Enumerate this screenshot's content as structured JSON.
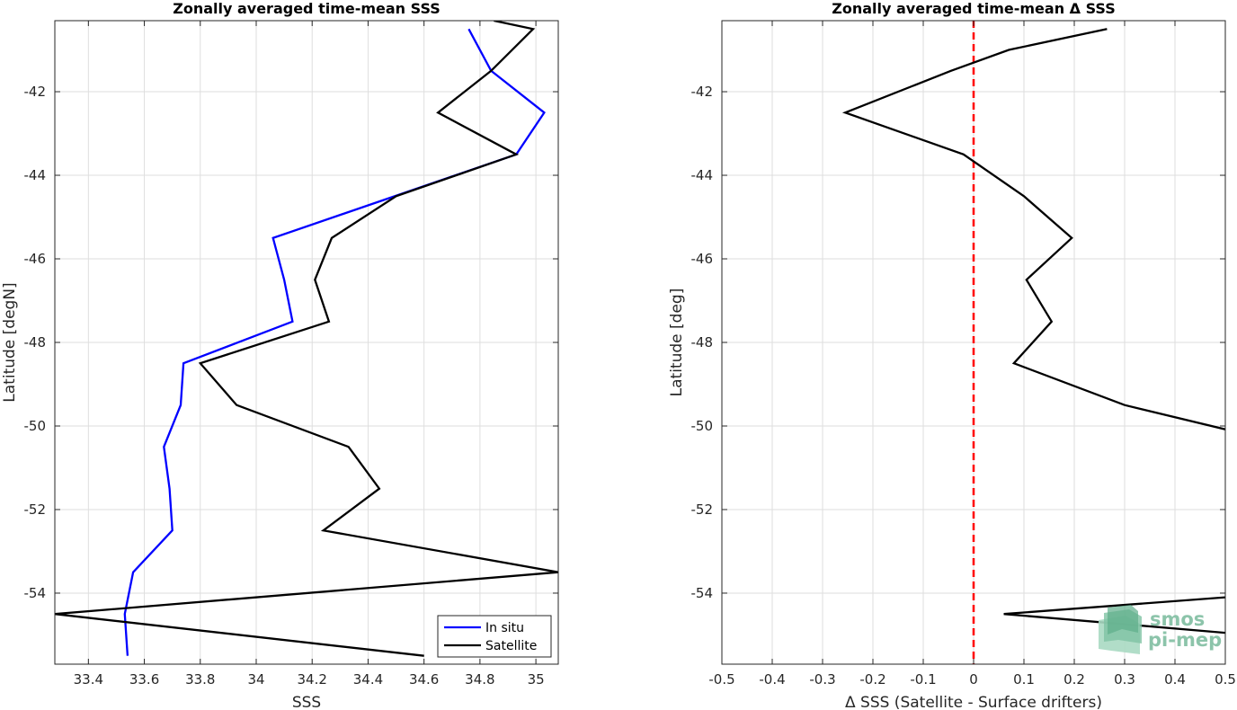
{
  "chart_data": [
    {
      "type": "line",
      "title": "Zonally averaged time-mean SSS",
      "xlabel": "SSS",
      "ylabel": "Latitude [degN]",
      "xlim": [
        33.28,
        35.08
      ],
      "ylim": [
        -55.7,
        -40.3
      ],
      "xticks": [
        33.4,
        33.6,
        33.8,
        34,
        34.2,
        34.4,
        34.6,
        34.8,
        35
      ],
      "xtick_labels": [
        "33.4",
        "33.6",
        "33.8",
        "34",
        "34.2",
        "34.4",
        "34.6",
        "34.8",
        "35"
      ],
      "yticks": [
        -42,
        -44,
        -46,
        -48,
        -50,
        -52,
        -54
      ],
      "ytick_labels": [
        "-42",
        "-44",
        "-46",
        "-48",
        "-50",
        "-52",
        "-54"
      ],
      "grid": true,
      "legend_position": "bottom-right",
      "series": [
        {
          "name": "In situ",
          "color": "#0000ff",
          "x": [
            34.76,
            34.84,
            35.03,
            34.93,
            34.06,
            34.1,
            34.13,
            33.74,
            33.73,
            33.67,
            33.69,
            33.7,
            33.56,
            33.53,
            33.53,
            33.54
          ],
          "y": [
            -40.5,
            -41.5,
            -42.5,
            -43.5,
            -45.5,
            -46.5,
            -47.5,
            -48.5,
            -49.5,
            -50.5,
            -51.5,
            -52.5,
            -53.5,
            -54.5,
            -54.5,
            -55.5
          ]
        },
        {
          "name": "Satellite",
          "color": "#000000",
          "x": [
            34.85,
            34.99,
            34.84,
            34.65,
            34.93,
            34.5,
            34.27,
            34.21,
            34.26,
            33.8,
            33.93,
            34.33,
            34.44,
            34.24,
            35.08,
            33.28,
            34.6
          ],
          "y": [
            -40.3,
            -40.5,
            -41.5,
            -42.5,
            -43.5,
            -44.5,
            -45.5,
            -46.5,
            -47.5,
            -48.5,
            -49.5,
            -50.5,
            -51.5,
            -52.5,
            -53.5,
            -54.5,
            -55.5
          ]
        }
      ]
    },
    {
      "type": "line",
      "title": "Zonally averaged time-mean Δ SSS",
      "xlabel": "Δ SSS (Satellite - Surface drifters)",
      "ylabel": "Latitude [deg]",
      "xlim": [
        -0.5,
        0.5
      ],
      "ylim": [
        -55.7,
        -40.3
      ],
      "xticks": [
        -0.5,
        -0.4,
        -0.3,
        -0.2,
        -0.1,
        0,
        0.1,
        0.2,
        0.3,
        0.4,
        0.5
      ],
      "xtick_labels": [
        "-0.5",
        "-0.4",
        "-0.3",
        "-0.2",
        "-0.1",
        "0",
        "0.1",
        "0.2",
        "0.3",
        "0.4",
        "0.5"
      ],
      "yticks": [
        -42,
        -44,
        -46,
        -48,
        -50,
        -52,
        -54
      ],
      "ytick_labels": [
        "-42",
        "-44",
        "-46",
        "-48",
        "-50",
        "-52",
        "-54"
      ],
      "grid": true,
      "reference_line": {
        "x": 0,
        "color": "#ff0000",
        "style": "dashed"
      },
      "series": [
        {
          "color": "#000000",
          "x": [
            0.265,
            0.07,
            -0.045,
            -0.255,
            -0.02,
            0.1,
            0.195,
            0.105,
            0.155,
            0.08,
            0.3,
            0.5
          ],
          "y": [
            -40.5,
            -41.0,
            -41.5,
            -42.5,
            -43.5,
            -44.5,
            -45.5,
            -46.5,
            -47.5,
            -48.5,
            -49.5,
            -50.08
          ]
        },
        {
          "color": "#000000",
          "x": [
            0.5,
            0.06,
            0.5
          ],
          "y": [
            -54.1,
            -54.5,
            -54.95
          ]
        }
      ]
    }
  ],
  "logo": {
    "line1": "smos",
    "line2": "pi-mep",
    "color": "#8cc4aa"
  }
}
